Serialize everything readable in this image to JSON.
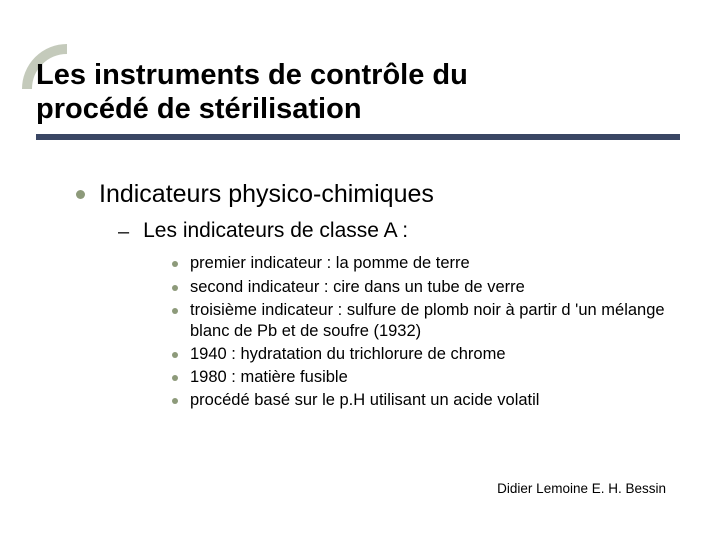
{
  "accent": {
    "arc_color": "#949e83",
    "rule_color": "#3a4664"
  },
  "title": {
    "line1": "Les instruments de contrôle du",
    "line2": "procédé de stérilisation"
  },
  "section": {
    "heading": "Indicateurs physico-chimiques"
  },
  "subsection": {
    "heading": "Les indicateurs de classe A :"
  },
  "items": [
    "premier indicateur : la pomme de terre",
    "second indicateur : cire dans un tube de verre",
    "troisième indicateur : sulfure de plomb noir à partir d 'un mélange blanc de Pb et de soufre (1932)",
    "1940 : hydratation du trichlorure de chrome",
    "1980 : matière fusible",
    "procédé basé sur le p.H utilisant un acide volatil"
  ],
  "footer": "Didier Lemoine E. H. Bessin"
}
